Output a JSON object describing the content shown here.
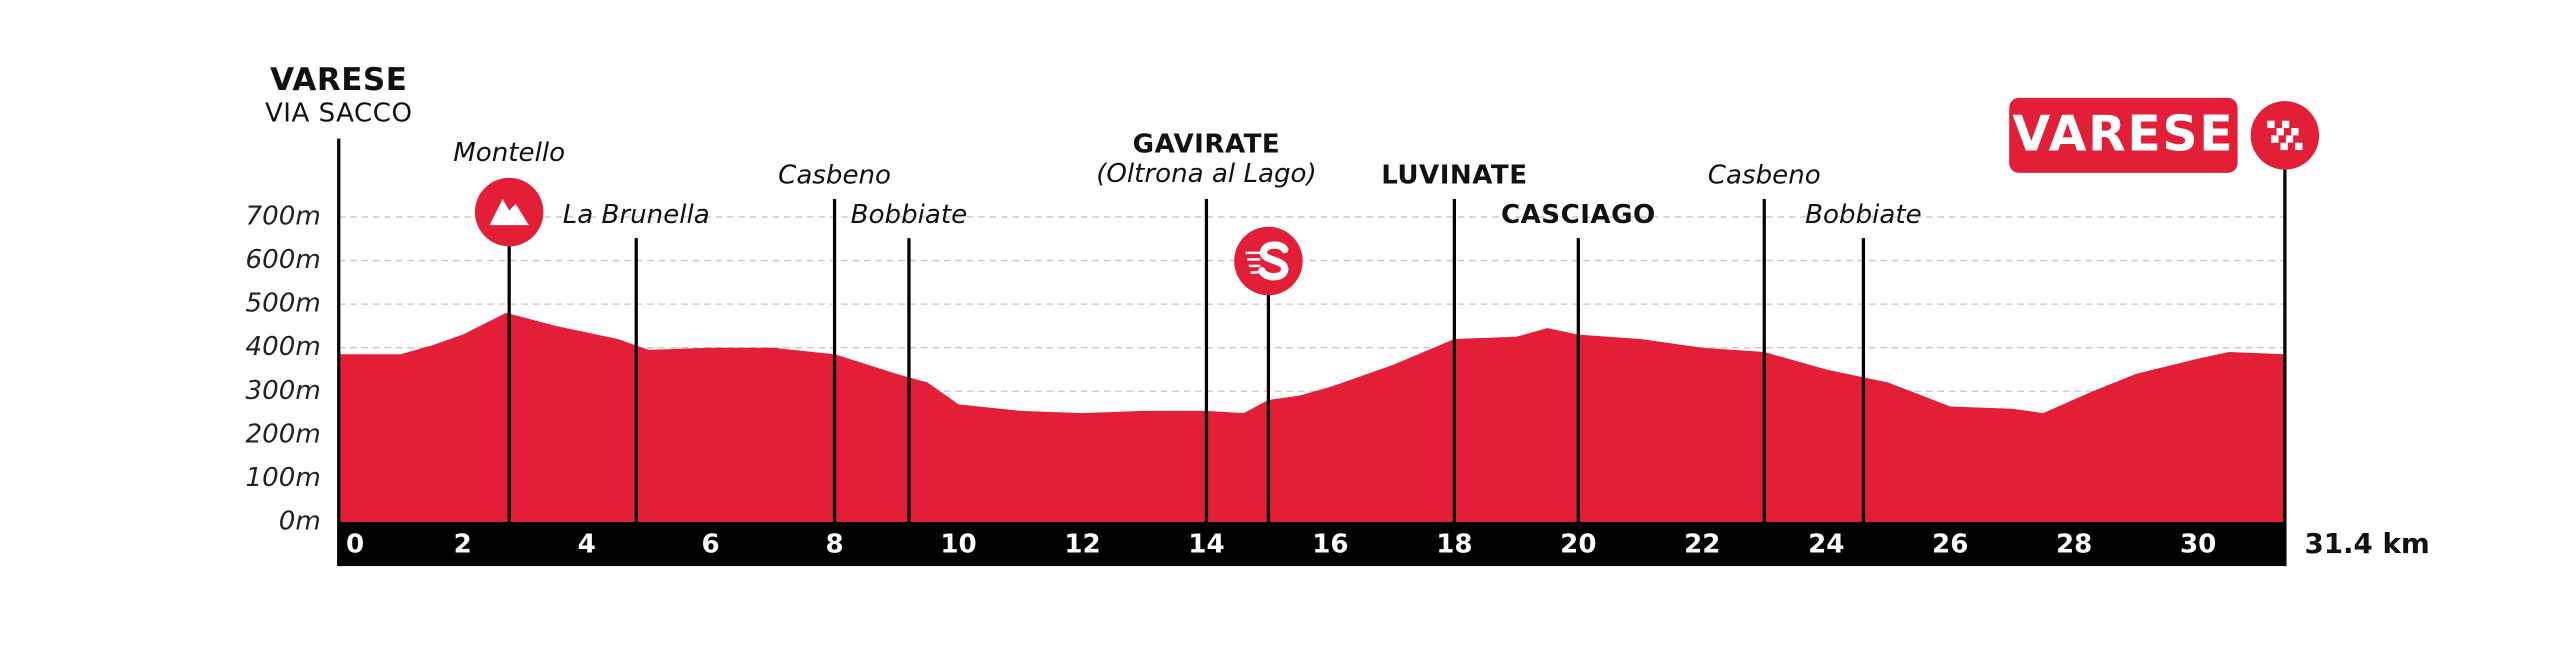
{
  "chart_data": {
    "type": "area",
    "x": [
      0,
      1,
      1.5,
      2,
      2.7,
      3.5,
      4.5,
      5,
      6,
      7,
      8,
      9,
      9.5,
      10,
      11,
      12,
      13,
      14,
      14.6,
      15,
      15.5,
      16,
      17,
      18,
      19,
      19.5,
      20,
      21,
      22,
      23,
      24,
      25,
      26,
      27,
      27.5,
      28.3,
      29,
      30,
      30.5,
      31.4
    ],
    "values": [
      385,
      385,
      405,
      430,
      480,
      450,
      420,
      395,
      400,
      400,
      385,
      340,
      320,
      270,
      255,
      250,
      255,
      255,
      250,
      280,
      290,
      310,
      360,
      420,
      425,
      445,
      430,
      420,
      400,
      390,
      350,
      320,
      265,
      260,
      250,
      300,
      340,
      375,
      390,
      385
    ],
    "color": "#e31e37",
    "xlim": [
      0,
      31.4
    ],
    "xticks": [
      0,
      2,
      4,
      6,
      8,
      10,
      12,
      14,
      16,
      18,
      20,
      22,
      24,
      26,
      28,
      30,
      {
        "value": 31.4,
        "label": "31.4 km"
      }
    ],
    "ylim": [
      0,
      700
    ],
    "yticks": [
      {
        "value": 0,
        "label": "0m"
      },
      {
        "value": 100,
        "label": "100m"
      },
      {
        "value": 200,
        "label": "200m"
      },
      {
        "value": 300,
        "label": "300m"
      },
      {
        "value": 400,
        "label": "400m"
      },
      {
        "value": 500,
        "label": "500m"
      },
      {
        "value": 600,
        "label": "600m"
      },
      {
        "value": 700,
        "label": "700m"
      }
    ],
    "grid": true,
    "waypoints": [
      {
        "km": 0,
        "name": "VARESE",
        "sub": "VIA SACCO"
      },
      {
        "km": 2.75,
        "name": "Montello"
      },
      {
        "km": 4.8,
        "name": "La Brunella"
      },
      {
        "km": 8.0,
        "name": "Casbeno"
      },
      {
        "km": 9.2,
        "name": "Bobbiate"
      },
      {
        "km": 14.0,
        "name": "GAVIRATE",
        "sub": "(Oltrona al Lago)"
      },
      {
        "km": 15.0
      },
      {
        "km": 18.0,
        "name": "LUVINATE"
      },
      {
        "km": 20.0,
        "name": "CASCIAGO"
      },
      {
        "km": 23.0,
        "name": "Casbeno"
      },
      {
        "km": 24.6,
        "name": "Bobbiate"
      },
      {
        "km": 31.4,
        "name": "VARESE"
      }
    ]
  }
}
